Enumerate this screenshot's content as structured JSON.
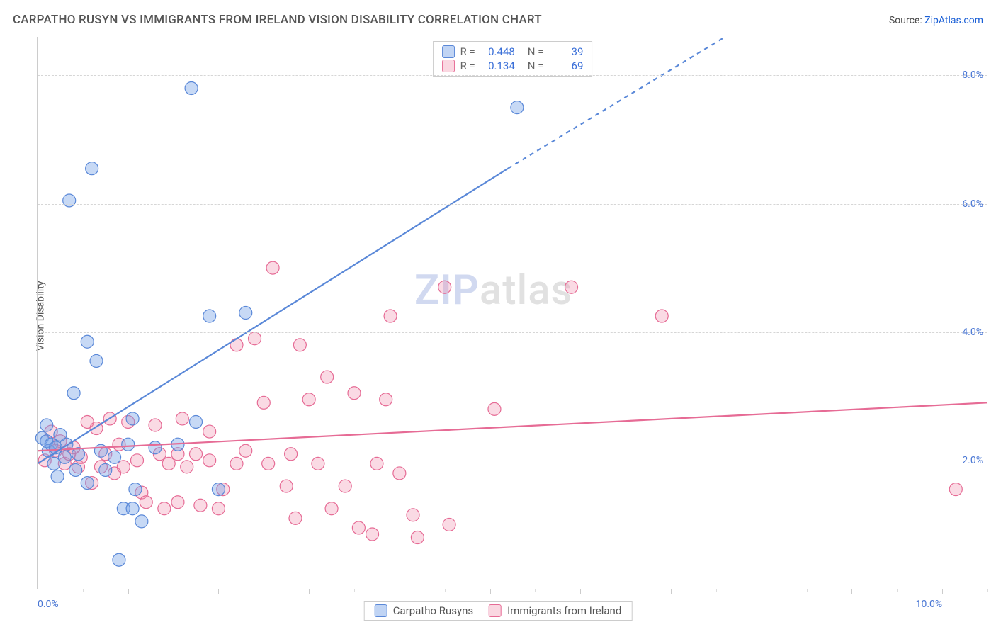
{
  "header": {
    "title": "CARPATHO RUSYN VS IMMIGRANTS FROM IRELAND VISION DISABILITY CORRELATION CHART",
    "source_prefix": "Source: ",
    "source_link": "ZipAtlas.com"
  },
  "y_axis_label": "Vision Disability",
  "watermark": {
    "part1": "ZIP",
    "part2": "atlas"
  },
  "chart": {
    "type": "scatter",
    "xlim": [
      0,
      10.5
    ],
    "ylim": [
      0,
      8.6
    ],
    "y_ticks": [
      2.0,
      4.0,
      6.0,
      8.0
    ],
    "y_tick_labels": [
      "2.0%",
      "4.0%",
      "6.0%",
      "8.0%"
    ],
    "x_ticks": [
      0.0,
      10.0
    ],
    "x_tick_labels": [
      "0.0%",
      "10.0%"
    ],
    "x_minor_step": 0.5,
    "x_major_ticks": [
      0,
      1,
      2,
      3,
      4,
      5,
      6,
      7,
      8,
      9,
      10
    ],
    "background_color": "#ffffff",
    "grid_color": "#d6d6d6",
    "axis_color": "#cccccc",
    "marker_radius": 9,
    "marker_stroke_width": 1.2,
    "trend_line_width": 2.2,
    "series": [
      {
        "name": "Carpatho Rusyns",
        "color_fill": "rgba(115,160,230,0.40)",
        "color_stroke": "#5a88d8",
        "points": [
          [
            0.05,
            2.35
          ],
          [
            0.1,
            2.3
          ],
          [
            0.1,
            2.55
          ],
          [
            0.12,
            2.15
          ],
          [
            0.15,
            2.25
          ],
          [
            0.18,
            1.95
          ],
          [
            0.2,
            2.2
          ],
          [
            0.22,
            1.75
          ],
          [
            0.25,
            2.4
          ],
          [
            0.3,
            2.05
          ],
          [
            0.32,
            2.25
          ],
          [
            0.35,
            6.05
          ],
          [
            0.4,
            3.05
          ],
          [
            0.42,
            1.85
          ],
          [
            0.45,
            2.1
          ],
          [
            0.55,
            1.65
          ],
          [
            0.55,
            3.85
          ],
          [
            0.6,
            6.55
          ],
          [
            0.65,
            3.55
          ],
          [
            0.7,
            2.15
          ],
          [
            0.75,
            1.85
          ],
          [
            0.85,
            2.05
          ],
          [
            0.9,
            0.45
          ],
          [
            0.95,
            1.25
          ],
          [
            1.0,
            2.25
          ],
          [
            1.05,
            2.65
          ],
          [
            1.05,
            1.25
          ],
          [
            1.08,
            1.55
          ],
          [
            1.15,
            1.05
          ],
          [
            1.3,
            2.2
          ],
          [
            1.55,
            2.25
          ],
          [
            1.7,
            7.8
          ],
          [
            1.75,
            2.6
          ],
          [
            1.9,
            4.25
          ],
          [
            2.0,
            1.55
          ],
          [
            2.3,
            4.3
          ],
          [
            5.3,
            7.5
          ]
        ],
        "trend": {
          "x1": 0,
          "y1": 1.95,
          "x2_solid": 5.2,
          "y2_solid": 6.55,
          "x2_dash": 7.6,
          "y2_dash": 8.6
        }
      },
      {
        "name": "Immigrants from Ireland",
        "color_fill": "rgba(240,140,170,0.32)",
        "color_stroke": "#e66b95",
        "points": [
          [
            0.08,
            2.0
          ],
          [
            0.15,
            2.45
          ],
          [
            0.2,
            2.15
          ],
          [
            0.25,
            2.3
          ],
          [
            0.3,
            1.95
          ],
          [
            0.35,
            2.1
          ],
          [
            0.4,
            2.2
          ],
          [
            0.45,
            1.9
          ],
          [
            0.48,
            2.05
          ],
          [
            0.55,
            2.6
          ],
          [
            0.6,
            1.65
          ],
          [
            0.65,
            2.5
          ],
          [
            0.7,
            1.9
          ],
          [
            0.75,
            2.1
          ],
          [
            0.8,
            2.65
          ],
          [
            0.85,
            1.8
          ],
          [
            0.9,
            2.25
          ],
          [
            0.95,
            1.9
          ],
          [
            1.0,
            2.6
          ],
          [
            1.1,
            2.0
          ],
          [
            1.15,
            1.5
          ],
          [
            1.2,
            1.35
          ],
          [
            1.3,
            2.55
          ],
          [
            1.35,
            2.1
          ],
          [
            1.4,
            1.25
          ],
          [
            1.45,
            1.95
          ],
          [
            1.55,
            2.1
          ],
          [
            1.55,
            1.35
          ],
          [
            1.6,
            2.65
          ],
          [
            1.65,
            1.9
          ],
          [
            1.75,
            2.1
          ],
          [
            1.8,
            1.3
          ],
          [
            1.9,
            2.0
          ],
          [
            1.9,
            2.45
          ],
          [
            2.0,
            1.25
          ],
          [
            2.05,
            1.55
          ],
          [
            2.2,
            1.95
          ],
          [
            2.2,
            3.8
          ],
          [
            2.3,
            2.15
          ],
          [
            2.4,
            3.9
          ],
          [
            2.5,
            2.9
          ],
          [
            2.55,
            1.95
          ],
          [
            2.6,
            5.0
          ],
          [
            2.75,
            1.6
          ],
          [
            2.8,
            2.1
          ],
          [
            2.85,
            1.1
          ],
          [
            2.9,
            3.8
          ],
          [
            3.0,
            2.95
          ],
          [
            3.1,
            1.95
          ],
          [
            3.2,
            3.3
          ],
          [
            3.25,
            1.25
          ],
          [
            3.4,
            1.6
          ],
          [
            3.5,
            3.05
          ],
          [
            3.55,
            0.95
          ],
          [
            3.7,
            0.85
          ],
          [
            3.75,
            1.95
          ],
          [
            3.85,
            2.95
          ],
          [
            3.9,
            4.25
          ],
          [
            4.0,
            1.8
          ],
          [
            4.15,
            1.15
          ],
          [
            4.2,
            0.8
          ],
          [
            4.5,
            4.7
          ],
          [
            4.55,
            1.0
          ],
          [
            5.05,
            2.8
          ],
          [
            5.9,
            4.7
          ],
          [
            6.9,
            4.25
          ],
          [
            10.15,
            1.55
          ]
        ],
        "trend": {
          "x1": 0,
          "y1": 2.15,
          "x2_solid": 10.5,
          "y2_solid": 2.9
        }
      }
    ]
  },
  "stats_box": {
    "rows": [
      {
        "swatch": "blue",
        "r_label": "R =",
        "r_value": "0.448",
        "n_label": "N =",
        "n_value": "39"
      },
      {
        "swatch": "pink",
        "r_label": "R =",
        "r_value": "0.134",
        "n_label": "N =",
        "n_value": "69"
      }
    ]
  },
  "bottom_legend": {
    "items": [
      {
        "swatch": "blue",
        "label": "Carpatho Rusyns"
      },
      {
        "swatch": "pink",
        "label": "Immigrants from Ireland"
      }
    ]
  }
}
